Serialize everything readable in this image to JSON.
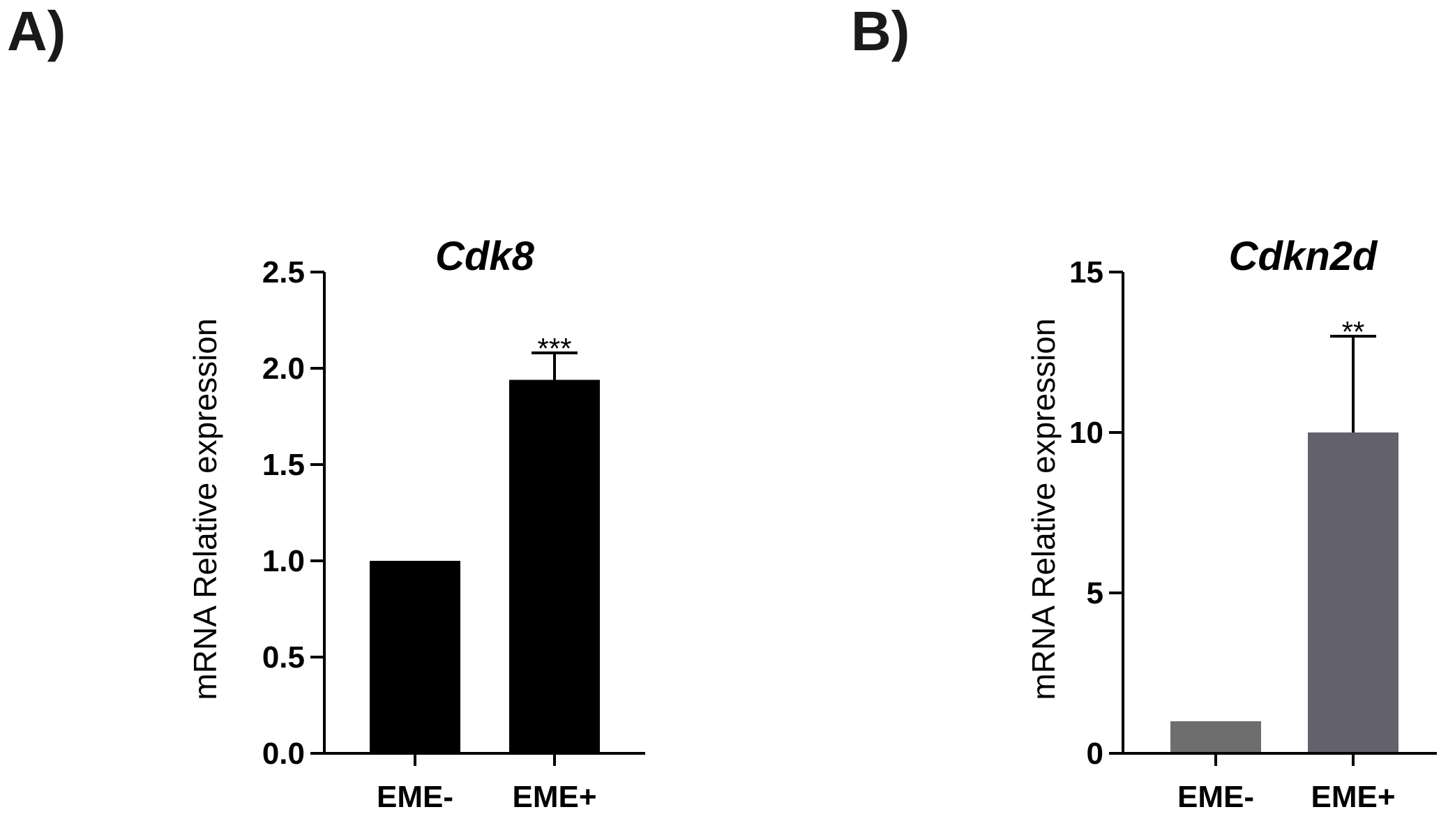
{
  "panels": [
    {
      "label": "A)"
    },
    {
      "label": "B)"
    }
  ],
  "chart_data": [
    {
      "type": "bar",
      "title": "Cdk8",
      "xlabel": "",
      "ylabel": "mRNA Relative expression",
      "categories": [
        "EME-",
        "EME+"
      ],
      "values": [
        1.0,
        1.94
      ],
      "errors": [
        0.0,
        0.14
      ],
      "significance": [
        "",
        "***"
      ],
      "ylim": [
        0,
        2.5
      ],
      "yticks": [
        0.0,
        0.5,
        1.0,
        1.5,
        2.0,
        2.5
      ],
      "ytick_labels": [
        "0.0",
        "0.5",
        "1.0",
        "1.5",
        "2.0",
        "2.5"
      ],
      "colors": [
        "#000000",
        "#000000"
      ]
    },
    {
      "type": "bar",
      "title": "Cdkn2d",
      "xlabel": "",
      "ylabel": "mRNA Relative expression",
      "categories": [
        "EME-",
        "EME+"
      ],
      "values": [
        1.0,
        10.0
      ],
      "errors": [
        0.0,
        3.0
      ],
      "significance": [
        "",
        "**"
      ],
      "ylim": [
        0,
        15
      ],
      "yticks": [
        0,
        5,
        10,
        15
      ],
      "ytick_labels": [
        "0",
        "5",
        "10",
        "15"
      ],
      "colors": [
        "#6e6e6e",
        "#63616c"
      ]
    }
  ]
}
